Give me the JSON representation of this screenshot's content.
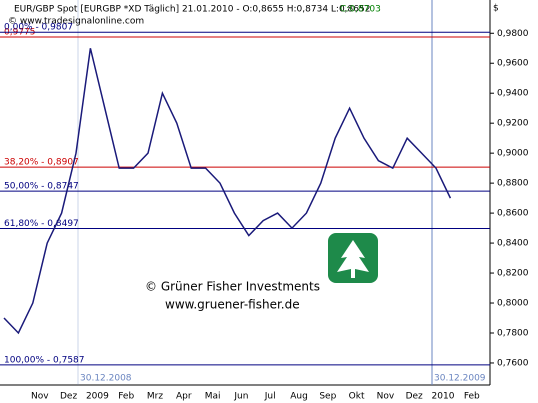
{
  "chart_data": {
    "type": "line",
    "header": "EUR/GBP Spot [EURGBP *XD Täglich] 21.01.2010 - O:0,8655 H:0,8734 L:0,8652",
    "header_close": "C:0,8703",
    "source": "© www.tradesignalonline.com",
    "currency_symbol": "$",
    "watermark": [
      "© Grüner Fisher Investments",
      "www.gruener-fisher.de"
    ],
    "date_markers": [
      "30.12.2008",
      "30.12.2009"
    ],
    "categories": [
      null,
      null,
      "Nov",
      null,
      "Dez",
      null,
      "2009",
      null,
      "Feb",
      null,
      "Mrz",
      null,
      "Apr",
      null,
      "Mai",
      null,
      "Jun",
      null,
      "Jul",
      null,
      "Aug",
      null,
      "Sep",
      null,
      "Okt",
      null,
      "Nov",
      null,
      "Dez",
      null,
      "2010",
      null,
      "Feb"
    ],
    "series": [
      {
        "name": "EUR/GBP",
        "color": "#1a1a7a",
        "values": [
          0.79,
          0.78,
          0.8,
          0.84,
          0.86,
          0.9,
          0.97,
          0.93,
          0.89,
          0.89,
          0.9,
          0.94,
          0.92,
          0.89,
          0.89,
          0.88,
          0.86,
          0.845,
          0.855,
          0.86,
          0.85,
          0.86,
          0.88,
          0.91,
          0.93,
          0.91,
          0.895,
          0.89,
          0.91,
          0.9,
          0.89,
          0.87,
          null
        ]
      }
    ],
    "levels": [
      {
        "value": 0.9775,
        "label": "0,9775",
        "color": "#cc0000"
      },
      {
        "value": 0.9807,
        "label": "0,00% - 0,9807",
        "color": "#000080"
      },
      {
        "value": 0.8907,
        "label": "38,20% - 0,8907",
        "color": "#cc0000"
      },
      {
        "value": 0.8747,
        "label": "50,00% - 0,8747",
        "color": "#000080"
      },
      {
        "value": 0.8497,
        "label": "61,80% - 0,8497",
        "color": "#000080"
      },
      {
        "value": 0.7587,
        "label": "100,00% - 0,7587",
        "color": "#000080"
      }
    ],
    "ylim": [
      0.7453,
      1.0022
    ],
    "yticks": [
      {
        "value": 0.98,
        "label": "0,9800"
      },
      {
        "value": 0.96,
        "label": "0,9600"
      },
      {
        "value": 0.94,
        "label": "0,9400"
      },
      {
        "value": 0.92,
        "label": "0,9200"
      },
      {
        "value": 0.9,
        "label": "0,9000"
      },
      {
        "value": 0.88,
        "label": "0,8800"
      },
      {
        "value": 0.86,
        "label": "0,8600"
      },
      {
        "value": 0.84,
        "label": "0,8400"
      },
      {
        "value": 0.82,
        "label": "0,8200"
      },
      {
        "value": 0.8,
        "label": "0,8000"
      },
      {
        "value": 0.78,
        "label": "0,7800"
      },
      {
        "value": 0.76,
        "label": "0,7600"
      }
    ]
  }
}
